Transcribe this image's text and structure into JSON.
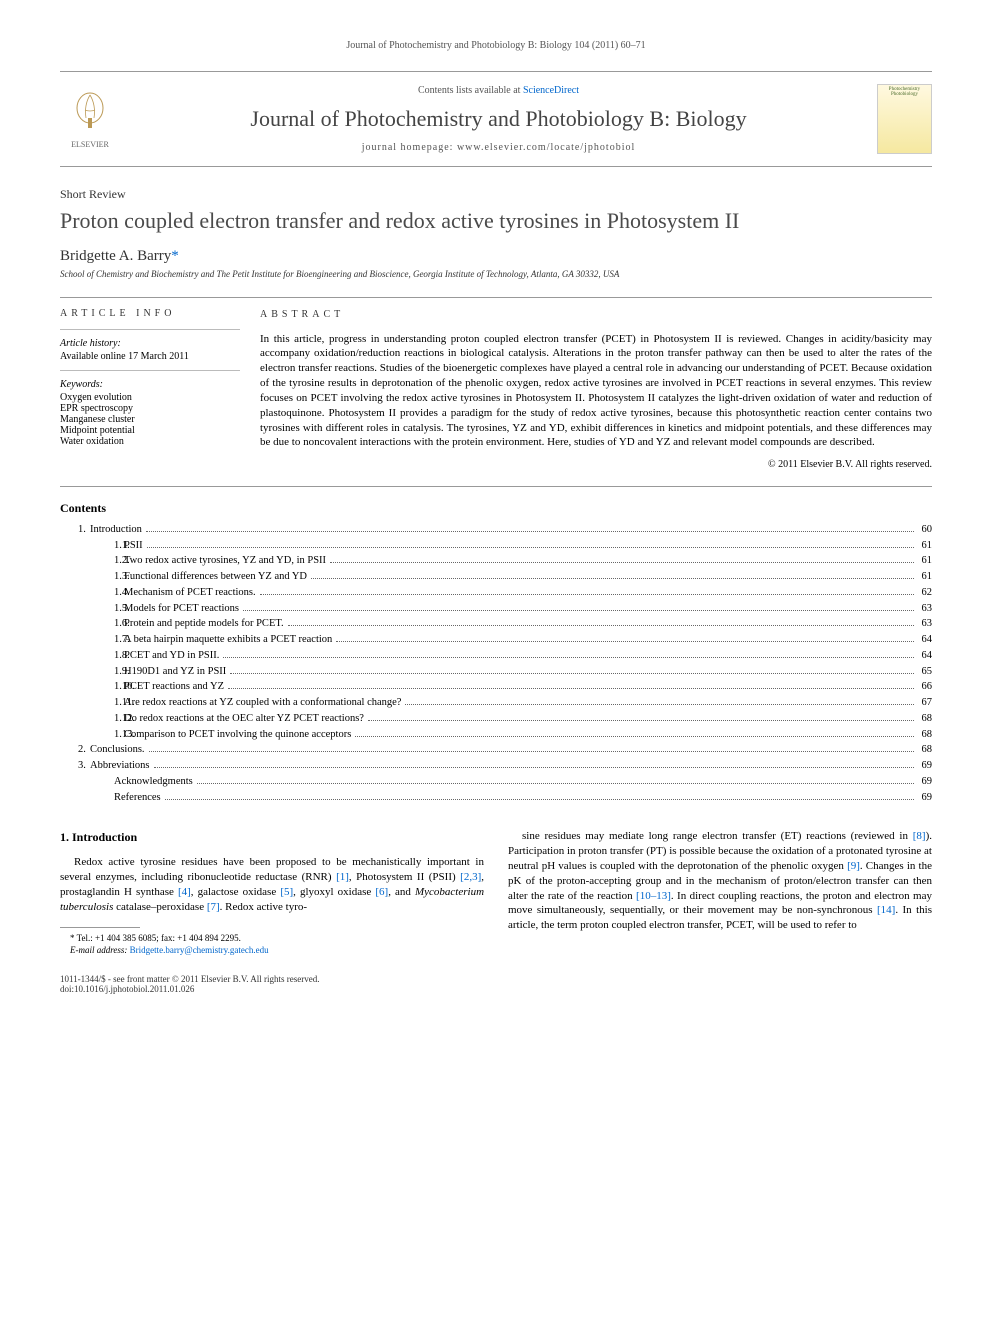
{
  "running_header": "Journal of Photochemistry and Photobiology B: Biology 104 (2011) 60–71",
  "journal_box": {
    "publisher": "ELSEVIER",
    "contents_text": "Contents lists available at ",
    "contents_link": "ScienceDirect",
    "journal_name": "Journal of Photochemistry and Photobiology B: Biology",
    "homepage_label": "journal homepage: ",
    "homepage_url": "www.elsevier.com/locate/jphotobiol",
    "cover_text": "Photochemistry Photobiology"
  },
  "article": {
    "type": "Short Review",
    "title": "Proton coupled electron transfer and redox active tyrosines in Photosystem II",
    "author": "Bridgette A. Barry",
    "author_mark": "*",
    "affiliation": "School of Chemistry and Biochemistry and The Petit Institute for Bioengineering and Bioscience, Georgia Institute of Technology, Atlanta, GA 30332, USA"
  },
  "info": {
    "heading": "ARTICLE INFO",
    "history_label": "Article history:",
    "history_line": "Available online 17 March 2011",
    "keywords_label": "Keywords:",
    "keywords": [
      "Oxygen evolution",
      "EPR spectroscopy",
      "Manganese cluster",
      "Midpoint potential",
      "Water oxidation"
    ]
  },
  "abstract": {
    "heading": "ABSTRACT",
    "text": "In this article, progress in understanding proton coupled electron transfer (PCET) in Photosystem II is reviewed. Changes in acidity/basicity may accompany oxidation/reduction reactions in biological catalysis. Alterations in the proton transfer pathway can then be used to alter the rates of the electron transfer reactions. Studies of the bioenergetic complexes have played a central role in advancing our understanding of PCET. Because oxidation of the tyrosine results in deprotonation of the phenolic oxygen, redox active tyrosines are involved in PCET reactions in several enzymes. This review focuses on PCET involving the redox active tyrosines in Photosystem II. Photosystem II catalyzes the light-driven oxidation of water and reduction of plastoquinone. Photosystem II provides a paradigm for the study of redox active tyrosines, because this photosynthetic reaction center contains two tyrosines with different roles in catalysis. The tyrosines, YZ and YD, exhibit differences in kinetics and midpoint potentials, and these differences may be due to noncovalent interactions with the protein environment. Here, studies of YD and YZ and relevant model compounds are described.",
    "copyright": "© 2011 Elsevier B.V. All rights reserved."
  },
  "contents": {
    "heading": "Contents",
    "items": [
      {
        "level": 1,
        "num": "1.",
        "label": "Introduction",
        "page": "60"
      },
      {
        "level": 2,
        "num": "1.1.",
        "label": "PSII",
        "page": "61"
      },
      {
        "level": 2,
        "num": "1.2.",
        "label": "Two redox active tyrosines, YZ and YD, in PSII",
        "page": "61"
      },
      {
        "level": 2,
        "num": "1.3.",
        "label": "Functional differences between YZ and YD",
        "page": "61"
      },
      {
        "level": 2,
        "num": "1.4.",
        "label": "Mechanism of PCET reactions.",
        "page": "62"
      },
      {
        "level": 2,
        "num": "1.5.",
        "label": "Models for PCET reactions",
        "page": "63"
      },
      {
        "level": 2,
        "num": "1.6.",
        "label": "Protein and peptide models for PCET.",
        "page": "63"
      },
      {
        "level": 2,
        "num": "1.7.",
        "label": "A beta hairpin maquette exhibits a PCET reaction",
        "page": "64"
      },
      {
        "level": 2,
        "num": "1.8.",
        "label": "PCET and YD in PSII.",
        "page": "64"
      },
      {
        "level": 2,
        "num": "1.9.",
        "label": "H190D1 and YZ in PSII",
        "page": "65"
      },
      {
        "level": 2,
        "num": "1.10.",
        "label": "PCET reactions and YZ",
        "page": "66"
      },
      {
        "level": 2,
        "num": "1.11.",
        "label": "Are redox reactions at YZ coupled with a conformational change?",
        "page": "67"
      },
      {
        "level": 2,
        "num": "1.12.",
        "label": "Do redox reactions at the OEC alter YZ PCET reactions?",
        "page": "68"
      },
      {
        "level": 2,
        "num": "1.13.",
        "label": "Comparison to PCET involving the quinone acceptors",
        "page": "68"
      },
      {
        "level": 1,
        "num": "2.",
        "label": "Conclusions.",
        "page": "68"
      },
      {
        "level": 1,
        "num": "3.",
        "label": "Abbreviations",
        "page": "69"
      },
      {
        "level": 2,
        "num": "",
        "label": "Acknowledgments",
        "page": "69"
      },
      {
        "level": 2,
        "num": "",
        "label": "References",
        "page": "69"
      }
    ]
  },
  "body": {
    "section_heading": "1. Introduction",
    "left_para": "Redox active tyrosine residues have been proposed to be mechanistically important in several enzymes, including ribonucleotide reductase (RNR) [1], Photosystem II (PSII) [2,3], prostaglandin H synthase [4], galactose oxidase [5], glyoxyl oxidase [6], and Mycobacterium tuberculosis catalase–peroxidase [7]. Redox active tyro-",
    "right_para": "sine residues may mediate long range electron transfer (ET) reactions (reviewed in [8]). Participation in proton transfer (PT) is possible because the oxidation of a protonated tyrosine at neutral pH values is coupled with the deprotonation of the phenolic oxygen [9]. Changes in the pK of the proton-accepting group and in the mechanism of proton/electron transfer can then alter the rate of the reaction [10–13]. In direct coupling reactions, the proton and electron may move simultaneously, sequentially, or their movement may be non-synchronous [14]. In this article, the term proton coupled electron transfer, PCET, will be used to refer to"
  },
  "footnote": {
    "tel": "* Tel.: +1 404 385 6085; fax: +1 404 894 2295.",
    "email_label": "E-mail address: ",
    "email": "Bridgette.barry@chemistry.gatech.edu"
  },
  "footer": {
    "line1": "1011-1344/$ - see front matter © 2011 Elsevier B.V. All rights reserved.",
    "line2": "doi:10.1016/j.jphotobiol.2011.01.026"
  },
  "colors": {
    "link": "#0066cc",
    "text": "#000000",
    "muted": "#555555",
    "border": "#999999"
  }
}
